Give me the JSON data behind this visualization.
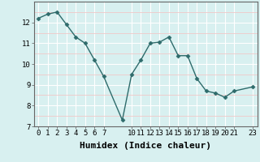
{
  "x": [
    0,
    1,
    2,
    3,
    4,
    5,
    6,
    7,
    9,
    10,
    11,
    12,
    13,
    14,
    15,
    16,
    17,
    18,
    19,
    20,
    21,
    23
  ],
  "y": [
    12.2,
    12.4,
    12.5,
    11.9,
    11.3,
    11.0,
    10.2,
    9.4,
    7.3,
    9.5,
    10.2,
    11.0,
    11.05,
    11.3,
    10.4,
    10.4,
    9.3,
    8.7,
    8.6,
    8.4,
    8.7,
    8.9
  ],
  "line_color": "#2e6b6b",
  "marker": "D",
  "marker_size": 2.5,
  "bg_color": "#d8f0f0",
  "grid_color_major": "#ffffff",
  "grid_color_minor": "#f0c8c8",
  "title": "",
  "xlabel": "Humidex (Indice chaleur)",
  "xlabel_fontsize": 8,
  "xlim": [
    -0.5,
    23.5
  ],
  "ylim": [
    7,
    13
  ],
  "yticks": [
    7,
    8,
    9,
    10,
    11,
    12
  ],
  "xticks": [
    0,
    1,
    2,
    3,
    4,
    5,
    6,
    7,
    10,
    11,
    12,
    13,
    14,
    15,
    16,
    17,
    18,
    19,
    20,
    21,
    23
  ],
  "xtick_labels": [
    "0",
    "1",
    "2",
    "3",
    "4",
    "5",
    "6",
    "7",
    "10",
    "11",
    "12",
    "13",
    "14",
    "15",
    "16",
    "17",
    "18",
    "19",
    "20",
    "21",
    "23"
  ],
  "tick_fontsize": 6.5
}
